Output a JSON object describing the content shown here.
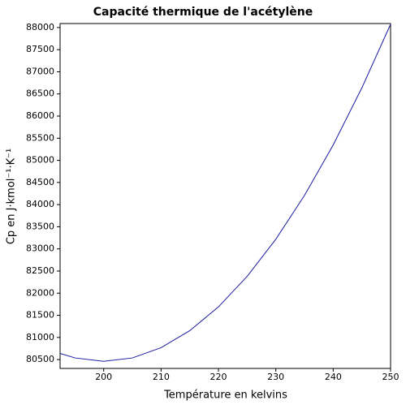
{
  "chart_data": {
    "type": "line",
    "title": "Capacité thermique de l'acétylène",
    "x_label": "Température en kelvins",
    "y_label": "Cp en J·kmol⁻¹·K⁻¹",
    "x": [
      192.4,
      195,
      200,
      205,
      210,
      215,
      220,
      225,
      230,
      235,
      240,
      245,
      250
    ],
    "series": [
      {
        "name": "Cp",
        "color": "#1a1aa0",
        "values": [
          80639,
          80537,
          80460,
          80537,
          80768,
          81153,
          81690,
          82379,
          83218,
          84208,
          85348,
          86637,
          88074
        ]
      }
    ],
    "xlim": [
      192.4,
      250
    ],
    "ylim": [
      80300,
      88090
    ],
    "xticks": [
      200,
      210,
      220,
      230,
      240,
      250
    ],
    "yticks": [
      80500,
      81000,
      81500,
      82000,
      82500,
      83000,
      83500,
      84000,
      84500,
      85000,
      85500,
      86000,
      86500,
      87000,
      87500,
      88000
    ]
  }
}
